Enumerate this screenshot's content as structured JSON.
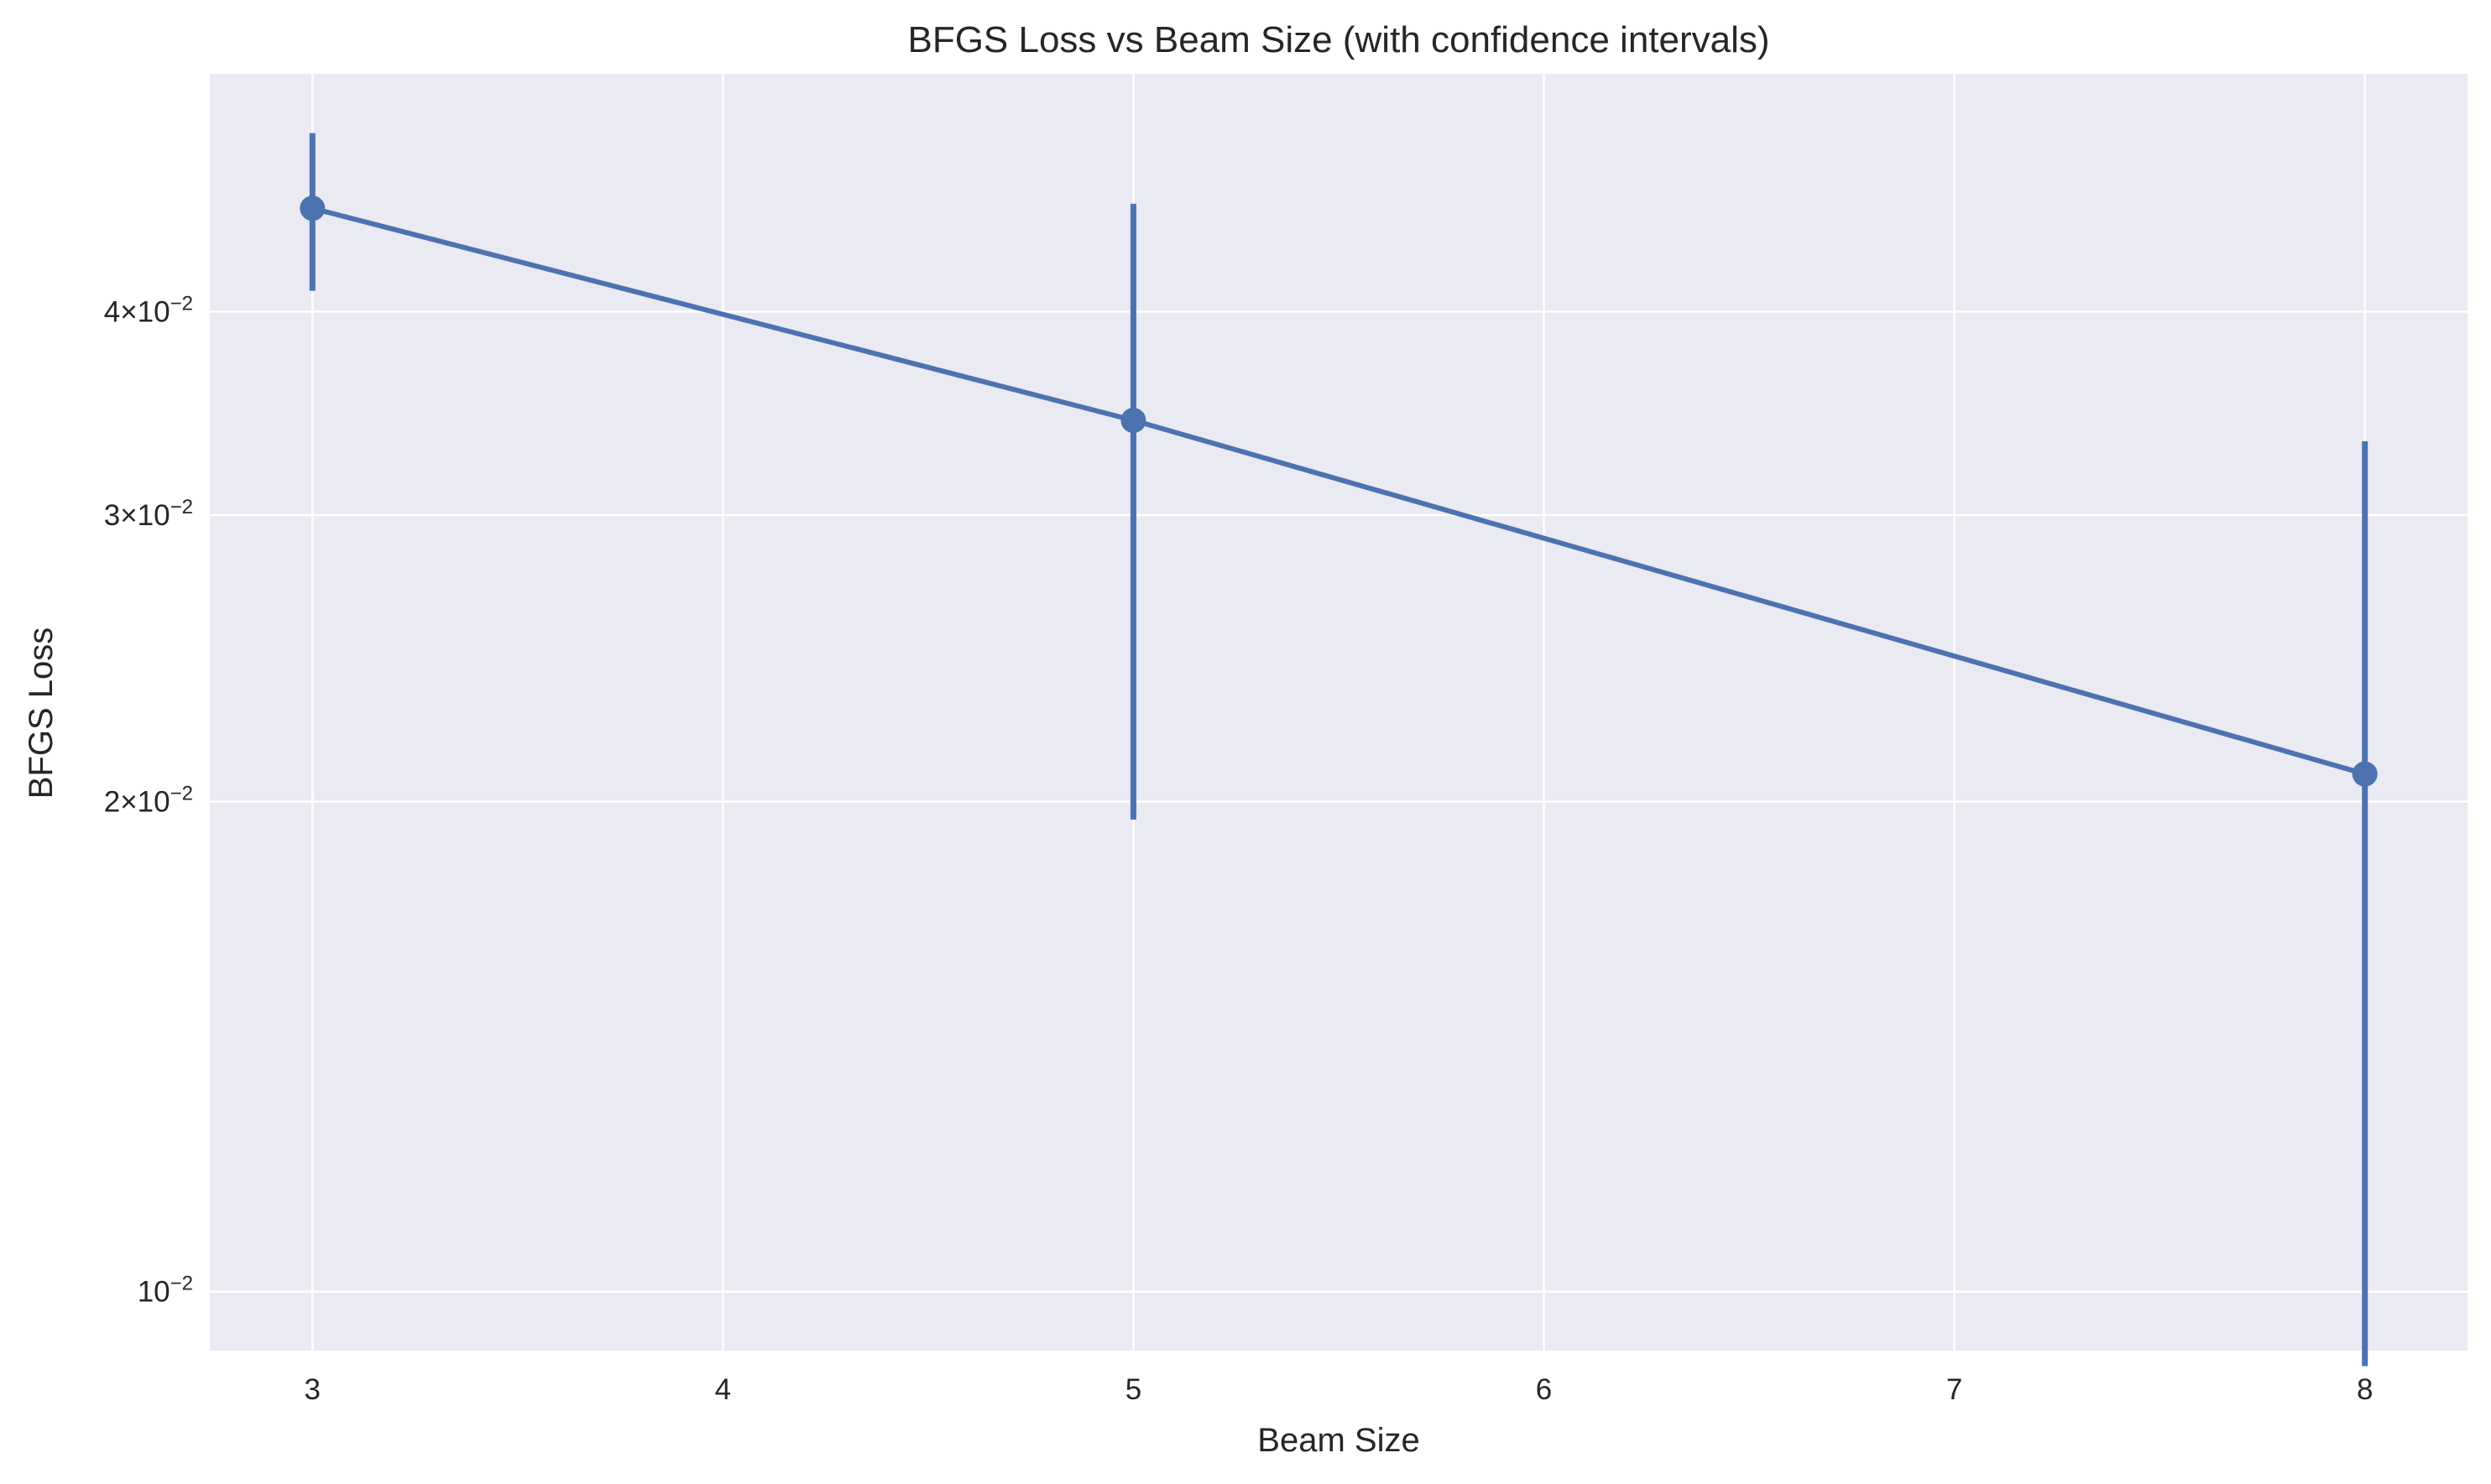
{
  "chart_data": {
    "type": "line",
    "title": "BFGS Loss vs Beam Size (with confidence intervals)",
    "xlabel": "Beam Size",
    "ylabel": "BFGS Loss",
    "xscale": "linear",
    "yscale": "log",
    "xlim": [
      2.75,
      8.25
    ],
    "ylim": [
      0.0092,
      0.056
    ],
    "x_ticks": [
      3,
      4,
      5,
      6,
      7,
      8
    ],
    "x_tick_labels": [
      "3",
      "4",
      "5",
      "6",
      "7",
      "8"
    ],
    "y_ticks": [
      {
        "value": 0.01,
        "mantissa": "",
        "exponent": "−2"
      },
      {
        "value": 0.02,
        "mantissa": "2",
        "exponent": "−2"
      },
      {
        "value": 0.03,
        "mantissa": "3",
        "exponent": "−2"
      },
      {
        "value": 0.04,
        "mantissa": "4",
        "exponent": "−2"
      }
    ],
    "grid": true,
    "legend": false,
    "colors": {
      "background": "#eaeaf2",
      "grid": "#ffffff",
      "series": "#4c72b0",
      "text": "#262626"
    },
    "series": [
      {
        "x": [
          3,
          5,
          8
        ],
        "y": [
          0.0463,
          0.0343,
          0.0208
        ],
        "ci_low": [
          0.0412,
          0.0195,
          0.009
        ],
        "ci_high": [
          0.0515,
          0.0466,
          0.0333
        ]
      }
    ]
  }
}
